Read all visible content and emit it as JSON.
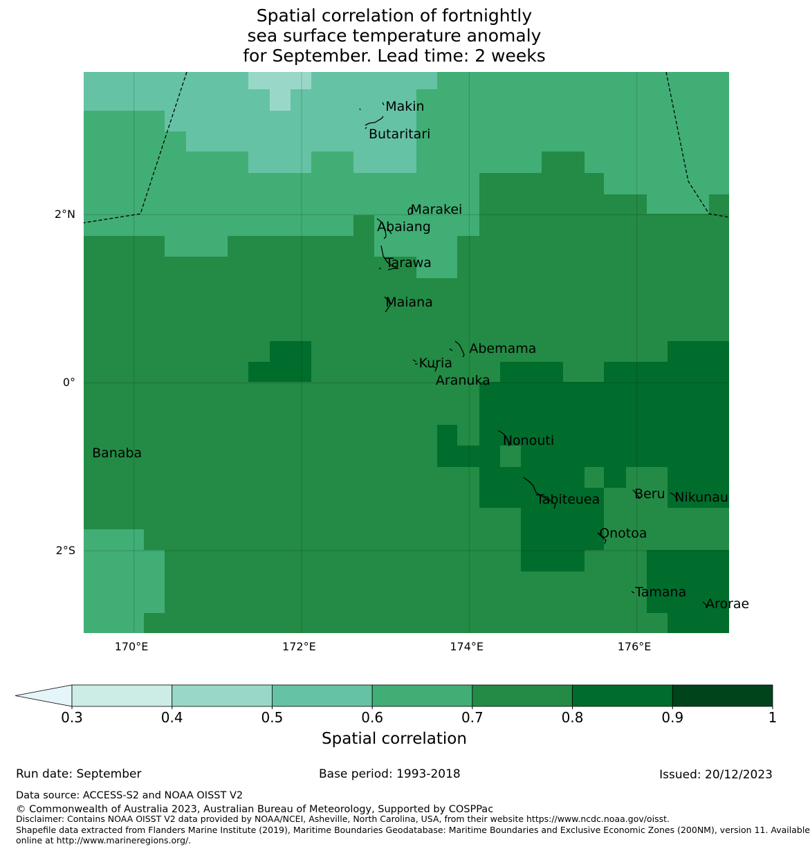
{
  "title": {
    "line1": "Spatial correlation of fortnightly",
    "line2": "sea surface temperature anomaly",
    "line3": "for September. Lead time: 2 weeks"
  },
  "map": {
    "lon_range": [
      169.4,
      177.1
    ],
    "lat_range": [
      -2.98,
      3.7
    ],
    "x_ticks": [
      {
        "lon": 170,
        "label": "170°E"
      },
      {
        "lon": 172,
        "label": "172°E"
      },
      {
        "lon": 174,
        "label": "174°E"
      },
      {
        "lon": 176,
        "label": "176°E"
      }
    ],
    "y_ticks": [
      {
        "lat": 2,
        "label": "2°N"
      },
      {
        "lat": 0,
        "label": "0°"
      },
      {
        "lat": -2,
        "label": "2°S"
      }
    ],
    "places": [
      {
        "name": "Makin",
        "lon": 173.0,
        "lat": 3.28
      },
      {
        "name": "Butaritari",
        "lon": 172.8,
        "lat": 2.95
      },
      {
        "name": "Marakei",
        "lon": 173.3,
        "lat": 2.05
      },
      {
        "name": "Abaiang",
        "lon": 172.9,
        "lat": 1.85
      },
      {
        "name": "Tarawa",
        "lon": 173.0,
        "lat": 1.42
      },
      {
        "name": "Maiana",
        "lon": 173.0,
        "lat": 0.95
      },
      {
        "name": "Abemama",
        "lon": 174.0,
        "lat": 0.4
      },
      {
        "name": "Kuria",
        "lon": 173.4,
        "lat": 0.22
      },
      {
        "name": "Aranuka",
        "lon": 173.6,
        "lat": 0.02
      },
      {
        "name": "Nonouti",
        "lon": 174.4,
        "lat": -0.7
      },
      {
        "name": "Banaba",
        "lon": 169.5,
        "lat": -0.85
      },
      {
        "name": "Tabiteuea",
        "lon": 174.8,
        "lat": -1.4
      },
      {
        "name": "Beru",
        "lon": 175.97,
        "lat": -1.33
      },
      {
        "name": "Nikunau",
        "lon": 176.45,
        "lat": -1.37
      },
      {
        "name": "Onotoa",
        "lon": 175.55,
        "lat": -1.8
      },
      {
        "name": "Tamana",
        "lon": 175.98,
        "lat": -2.5
      },
      {
        "name": "Arorae",
        "lon": 176.82,
        "lat": -2.64
      }
    ]
  },
  "colorbar": {
    "label": "Spatial correlation",
    "ticks": [
      "0.3",
      "0.4",
      "0.5",
      "0.6",
      "0.7",
      "0.8",
      "0.9",
      "1"
    ],
    "colors": [
      "#ccece6",
      "#99d8c9",
      "#66c2a4",
      "#41ae76",
      "#238b45",
      "#006d2c",
      "#00441b"
    ],
    "under_color": "#e5f5f9"
  },
  "footer": {
    "run_date": "Run date: September",
    "base_period": "Base period: 1993-2018",
    "issued": "Issued: 20/12/2023",
    "data_source": "Data source: ACCESS-S2 and NOAA OISST V2",
    "copyright": "© Commonwealth of Australia 2023, Australian Bureau of Meteorology, Supported by COSPPac",
    "disclaimer": "Disclaimer: Contains NOAA OISST V2 data provided by NOAA/NCEI, Asheville, North Carolina, USA, from their website https://www.ncdc.noaa.gov/oisst.",
    "shapefile1": "Shapefile data extracted from Flanders Marine Institute (2019), Maritime Boundaries Geodatabase: Maritime Boundaries and Exclusive Economic Zones (200NM), version 11. Available",
    "shapefile2": "online at http://www.marineregions.org/."
  }
}
